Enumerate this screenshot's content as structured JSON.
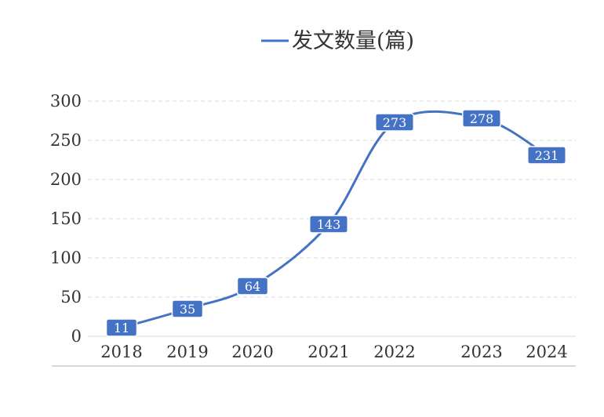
{
  "chart_data": {
    "type": "line",
    "x": [
      "2018",
      "2019",
      "2020",
      "2021",
      "2022",
      "2023",
      "2024"
    ],
    "series": [
      {
        "name": "发文数量(篇)",
        "values": [
          11,
          35,
          64,
          143,
          273,
          278,
          231
        ]
      }
    ],
    "ylim": [
      0,
      300
    ],
    "yticks": [
      0,
      50,
      100,
      150,
      200,
      250,
      300
    ],
    "grid": true,
    "legend": "top-center",
    "line_color": "#4472c4",
    "label_color": "#4472c4",
    "grid_color": "#d9d9d9",
    "smooth": true,
    "data_labels": true
  }
}
